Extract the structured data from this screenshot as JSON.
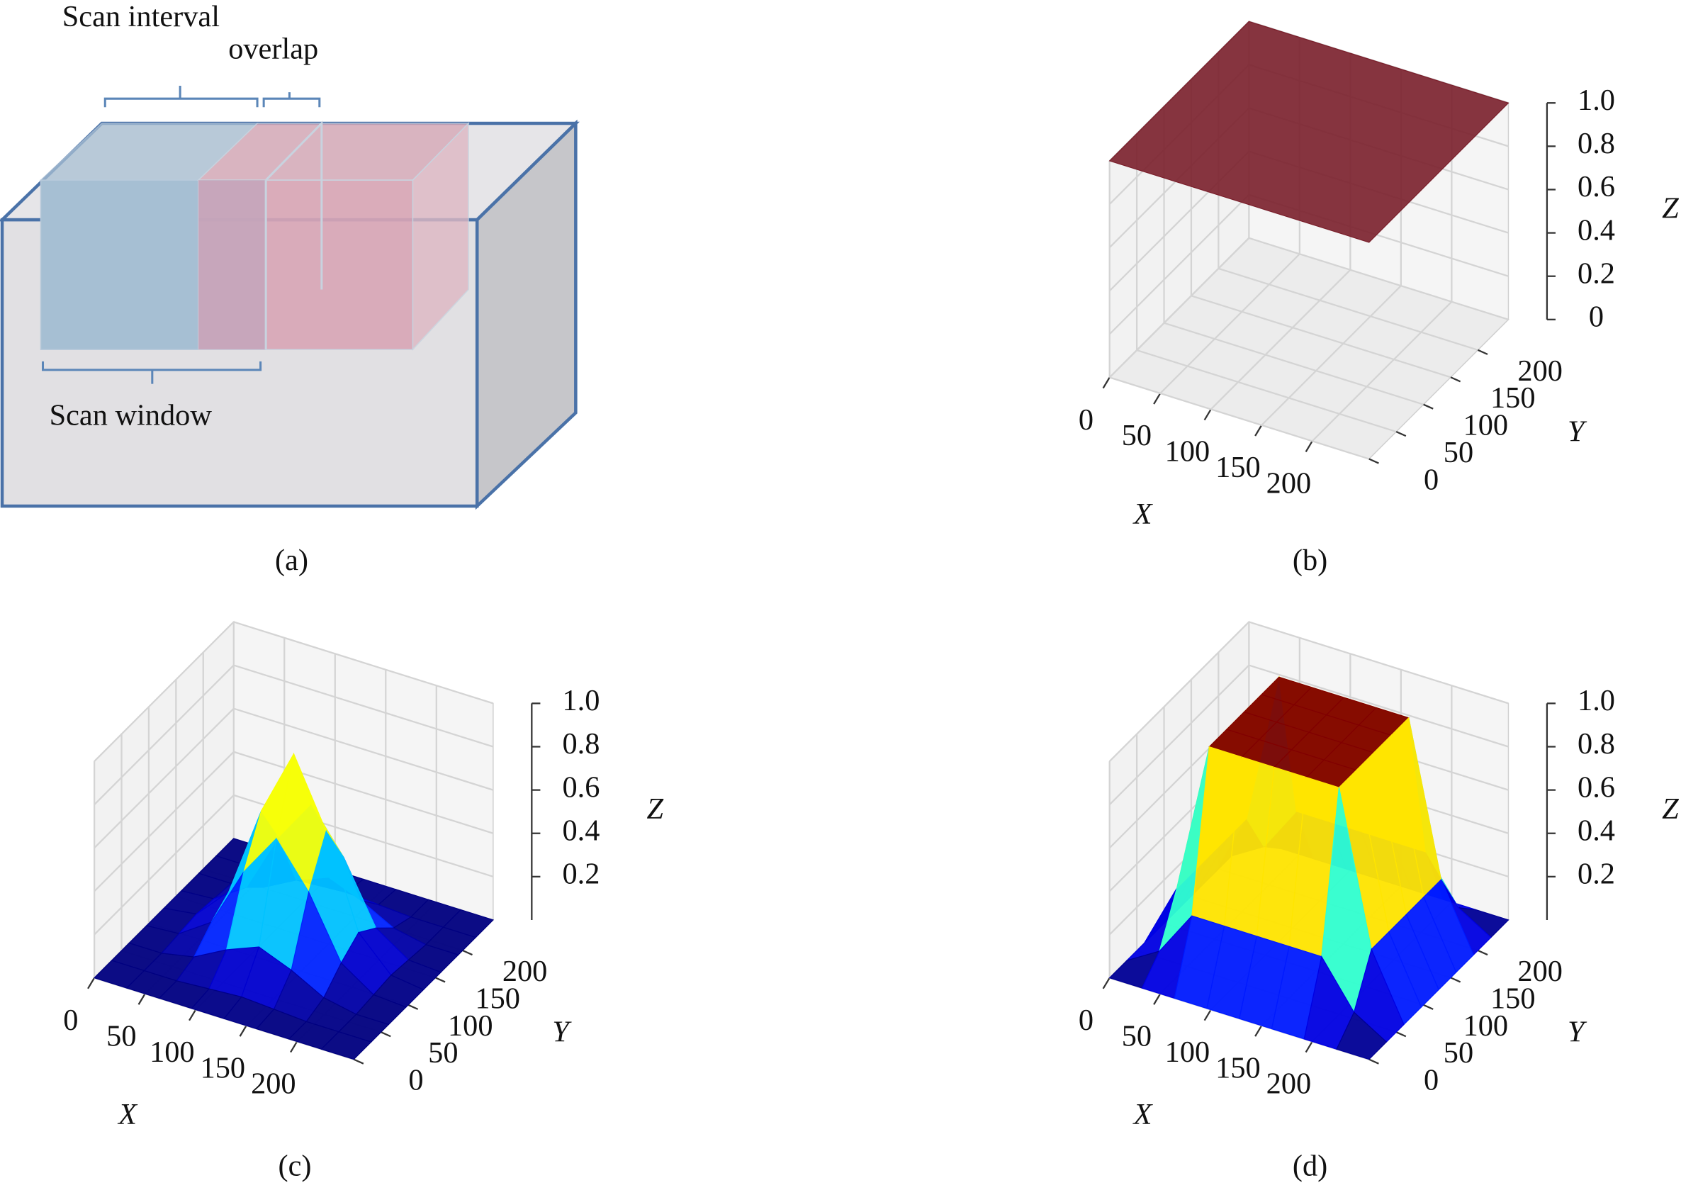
{
  "diagram": {
    "scan_interval": "Scan interval",
    "overlap": "overlap",
    "scan_window": "Scan window",
    "caption": "(a)"
  },
  "chart_data": [
    {
      "type": "surface3d",
      "caption": "(b)",
      "color": "#7a1f2b",
      "x": [
        0,
        256
      ],
      "y": [
        0,
        256
      ],
      "z": [
        [
          1,
          1
        ],
        [
          1,
          1
        ]
      ],
      "xlim": [
        0,
        256
      ],
      "ylim": [
        0,
        256
      ],
      "zlim": [
        0,
        1
      ],
      "xticks": [
        0,
        50,
        100,
        150,
        200
      ],
      "yticks": [
        0,
        50,
        100,
        150,
        200
      ],
      "zticks": [
        0,
        0.2,
        0.4,
        0.6,
        0.8,
        {
          "value": 1,
          "label": "1.0"
        }
      ],
      "xlabel": "X",
      "ylabel": "Y",
      "zlabel": "Z",
      "grid": true
    },
    {
      "type": "surface3d",
      "caption": "(c)",
      "colormap": "jet",
      "x": [
        0,
        32,
        64,
        96,
        128,
        160,
        192,
        224,
        256
      ],
      "y": [
        0,
        32,
        64,
        96,
        128,
        160,
        192,
        224,
        256
      ],
      "z": [
        [
          0,
          0,
          0,
          0,
          0,
          0,
          0,
          0,
          0
        ],
        [
          0,
          0,
          0,
          0.01,
          0.02,
          0.01,
          0,
          0,
          0
        ],
        [
          0,
          0,
          0.03,
          0.11,
          0.17,
          0.11,
          0.03,
          0,
          0
        ],
        [
          0,
          0.01,
          0.11,
          0.39,
          0.59,
          0.39,
          0.11,
          0.01,
          0
        ],
        [
          0,
          0.02,
          0.17,
          0.59,
          0.9,
          0.59,
          0.17,
          0.02,
          0
        ],
        [
          0,
          0.01,
          0.11,
          0.39,
          0.59,
          0.39,
          0.11,
          0.01,
          0
        ],
        [
          0,
          0,
          0.03,
          0.11,
          0.17,
          0.11,
          0.03,
          0,
          0
        ],
        [
          0,
          0,
          0,
          0.01,
          0.02,
          0.01,
          0,
          0,
          0
        ],
        [
          0,
          0,
          0,
          0,
          0,
          0,
          0,
          0,
          0
        ]
      ],
      "xlim": [
        0,
        256
      ],
      "ylim": [
        0,
        256
      ],
      "zlim": [
        0,
        1
      ],
      "xticks": [
        0,
        50,
        100,
        150,
        200
      ],
      "yticks": [
        0,
        50,
        100,
        150,
        200
      ],
      "zticks": [
        0.2,
        0.4,
        0.6,
        0.8,
        {
          "value": 1,
          "label": "1.0"
        }
      ],
      "xlabel": "X",
      "ylabel": "Y",
      "zlabel": "Z",
      "grid": true
    },
    {
      "type": "surface3d",
      "caption": "(d)",
      "colormap": "jet",
      "x": [
        0,
        32,
        64,
        96,
        128,
        160,
        192,
        224,
        256
      ],
      "y": [
        0,
        32,
        64,
        96,
        128,
        160,
        192,
        224,
        256
      ],
      "z": [
        [
          0,
          0,
          0,
          0,
          0,
          0,
          0,
          0,
          0
        ],
        [
          0,
          0.09,
          0.3,
          0.3,
          0.3,
          0.3,
          0.3,
          0.09,
          0
        ],
        [
          0,
          0.3,
          1,
          1,
          1,
          1,
          1,
          0.3,
          0
        ],
        [
          0,
          0.3,
          1,
          1,
          1,
          1,
          1,
          0.3,
          0
        ],
        [
          0,
          0.3,
          1,
          1,
          1,
          1,
          1,
          0.3,
          0
        ],
        [
          0,
          0.3,
          1,
          1,
          1,
          1,
          1,
          0.3,
          0
        ],
        [
          0,
          0.3,
          1,
          1,
          1,
          1,
          1,
          0.3,
          0
        ],
        [
          0,
          0.09,
          0.3,
          0.3,
          0.3,
          0.3,
          0.3,
          0.09,
          0
        ],
        [
          0,
          0,
          0,
          0,
          0,
          0,
          0,
          0,
          0
        ]
      ],
      "xlim": [
        0,
        256
      ],
      "ylim": [
        0,
        256
      ],
      "zlim": [
        0,
        1
      ],
      "xticks": [
        0,
        50,
        100,
        150,
        200
      ],
      "yticks": [
        0,
        50,
        100,
        150,
        200
      ],
      "zticks": [
        0.2,
        0.4,
        0.6,
        0.8,
        {
          "value": 1,
          "label": "1.0"
        }
      ],
      "xlabel": "X",
      "ylabel": "Y",
      "zlabel": "Z",
      "grid": true
    }
  ]
}
